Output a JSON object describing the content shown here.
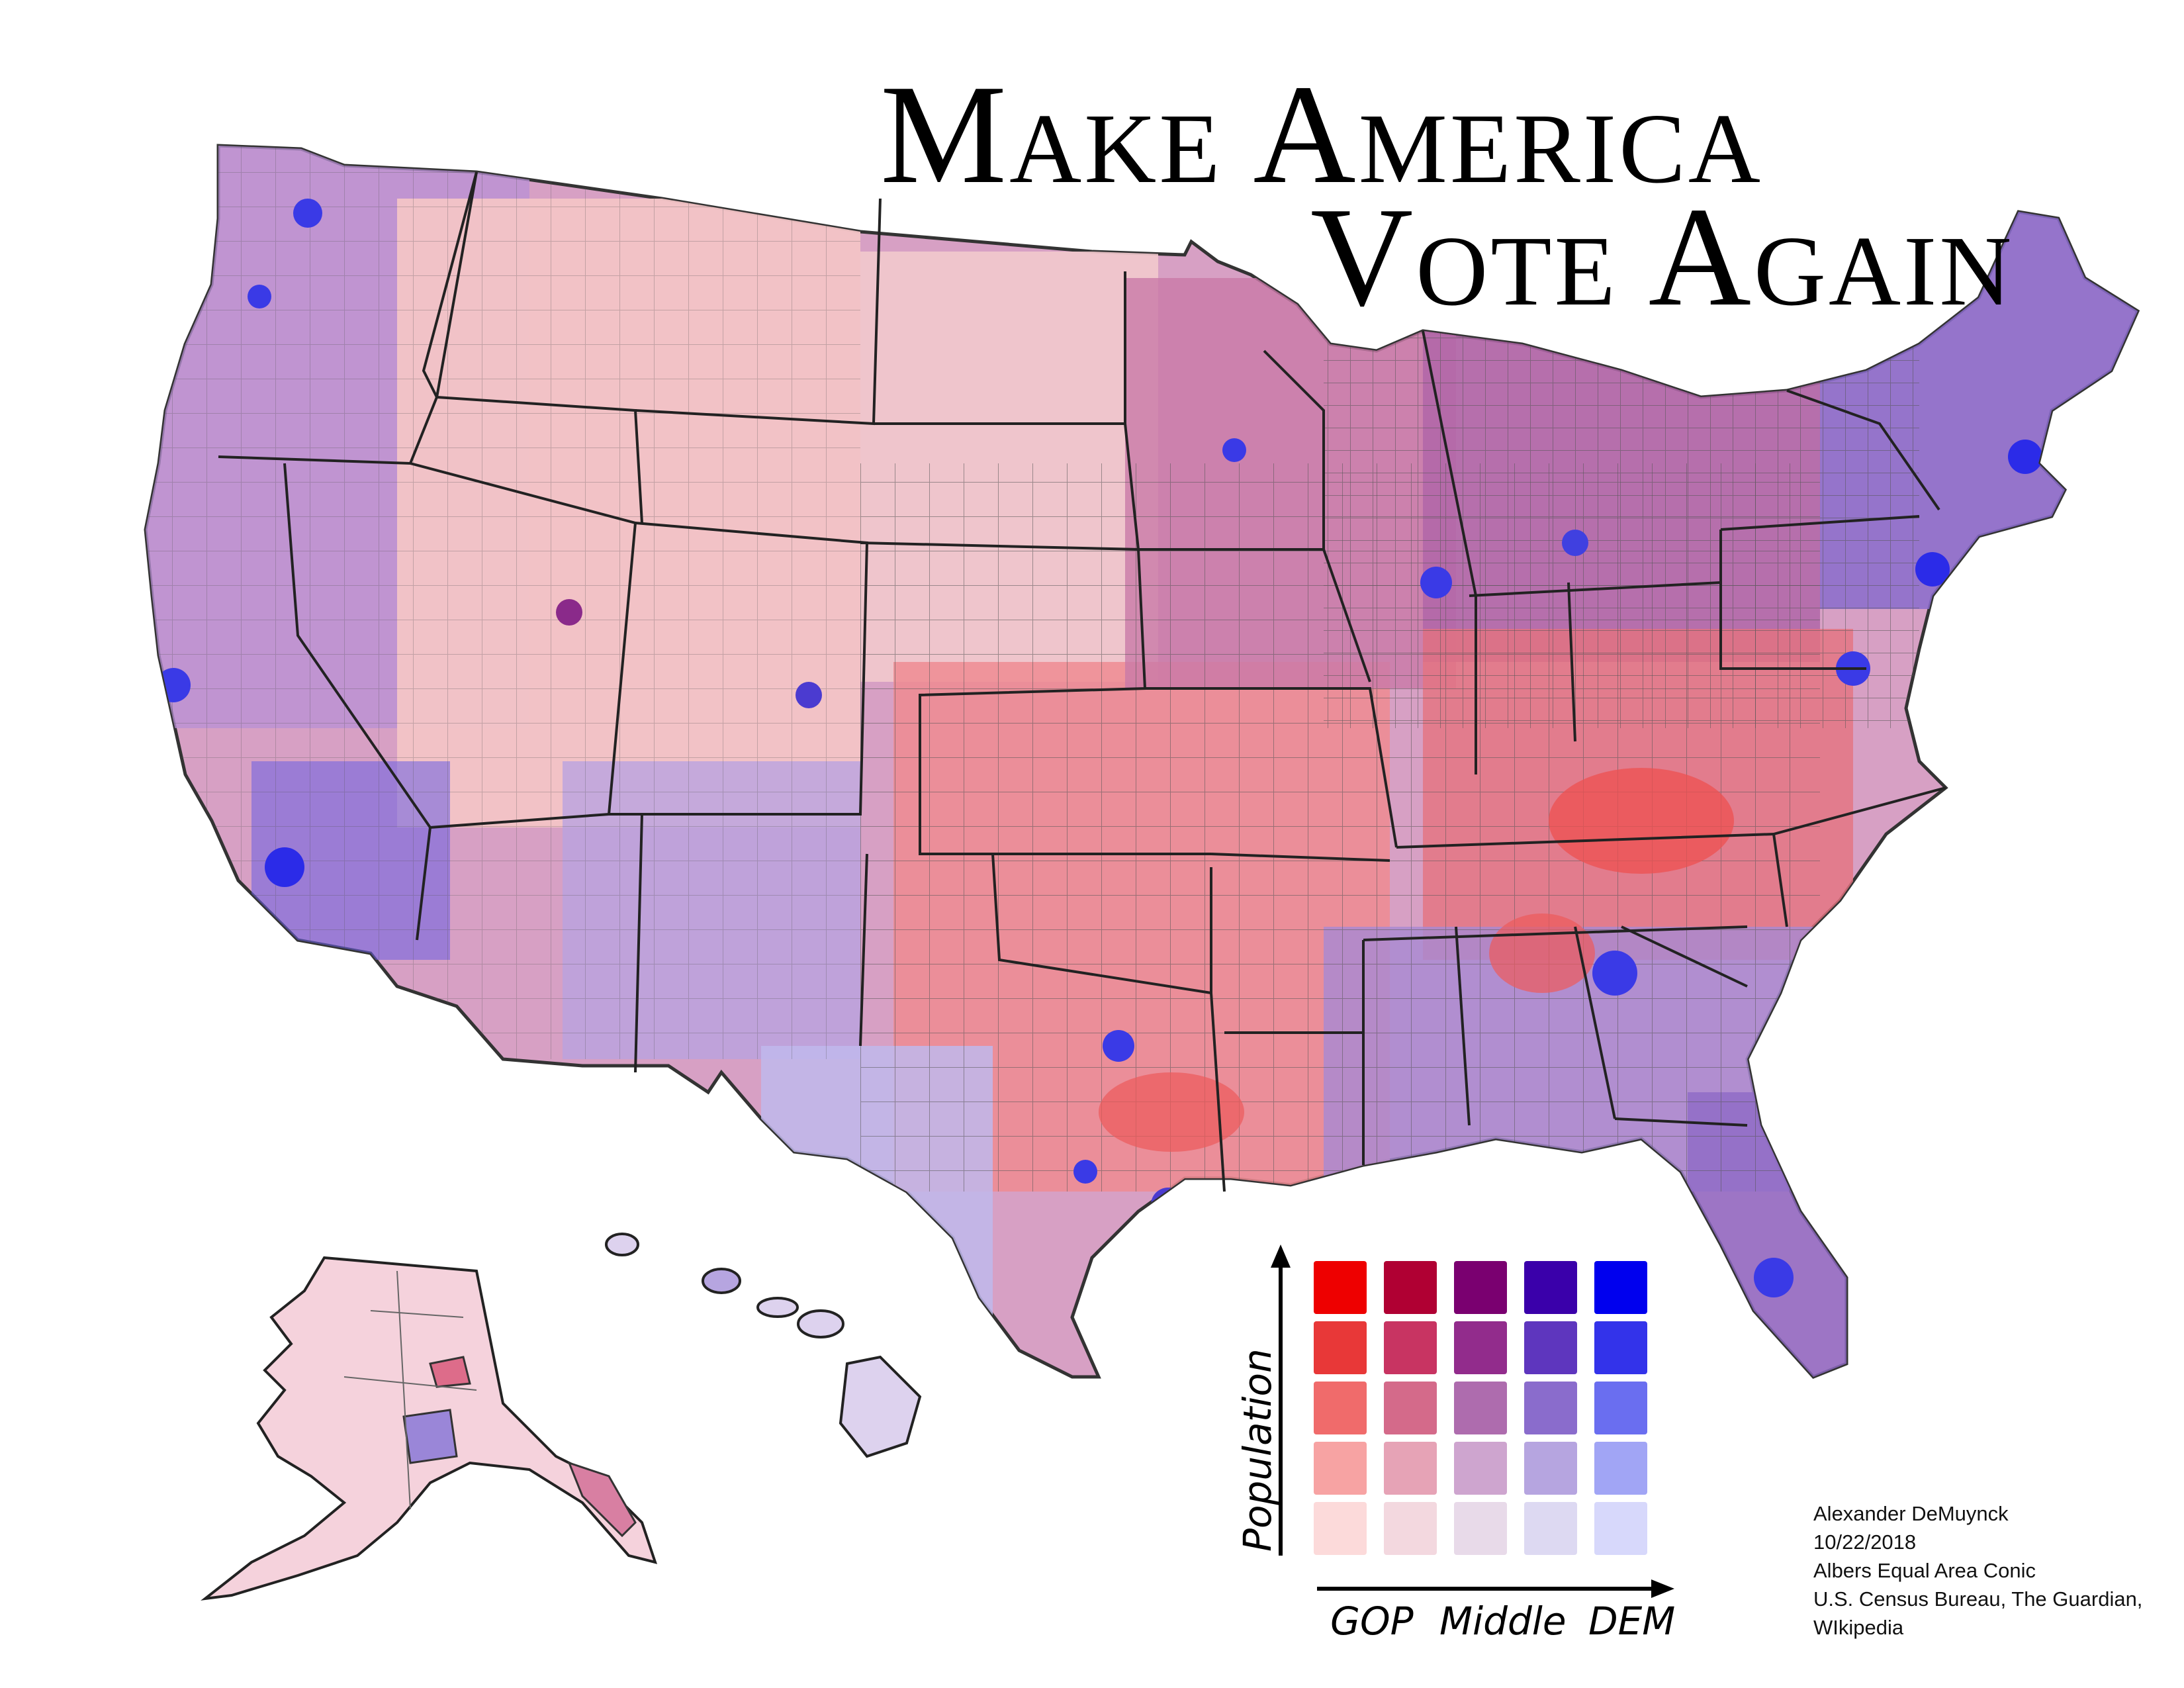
{
  "title": {
    "line1": "Make America",
    "line2": "Vote Again"
  },
  "legend": {
    "y_axis_label": "Population",
    "x_axis_labels": [
      "GOP",
      "Middle",
      "DEM"
    ],
    "grid_rows_top_to_bottom": [
      [
        "#ee0000",
        "#b00033",
        "#7a0070",
        "#3a00aa",
        "#0000ee"
      ],
      [
        "#e83838",
        "#c83462",
        "#922c8c",
        "#5e36be",
        "#3333ea"
      ],
      [
        "#f06b6b",
        "#d46a8a",
        "#ae6cae",
        "#8a6ccc",
        "#6a6ef0"
      ],
      [
        "#f7a3a3",
        "#e6a3b6",
        "#cea5cf",
        "#b6a5e0",
        "#a1a5f5"
      ],
      [
        "#fcdada",
        "#f3d8df",
        "#e8dae9",
        "#ddd9f2",
        "#d7d8fb"
      ]
    ]
  },
  "credits": [
    "Alexander DeMuynck",
    "10/22/2018",
    "Albers Equal Area Conic",
    "U.S. Census Bureau, The Guardian,",
    "WIkipedia"
  ],
  "colors": {
    "border": "#333333",
    "background": "#ffffff"
  }
}
